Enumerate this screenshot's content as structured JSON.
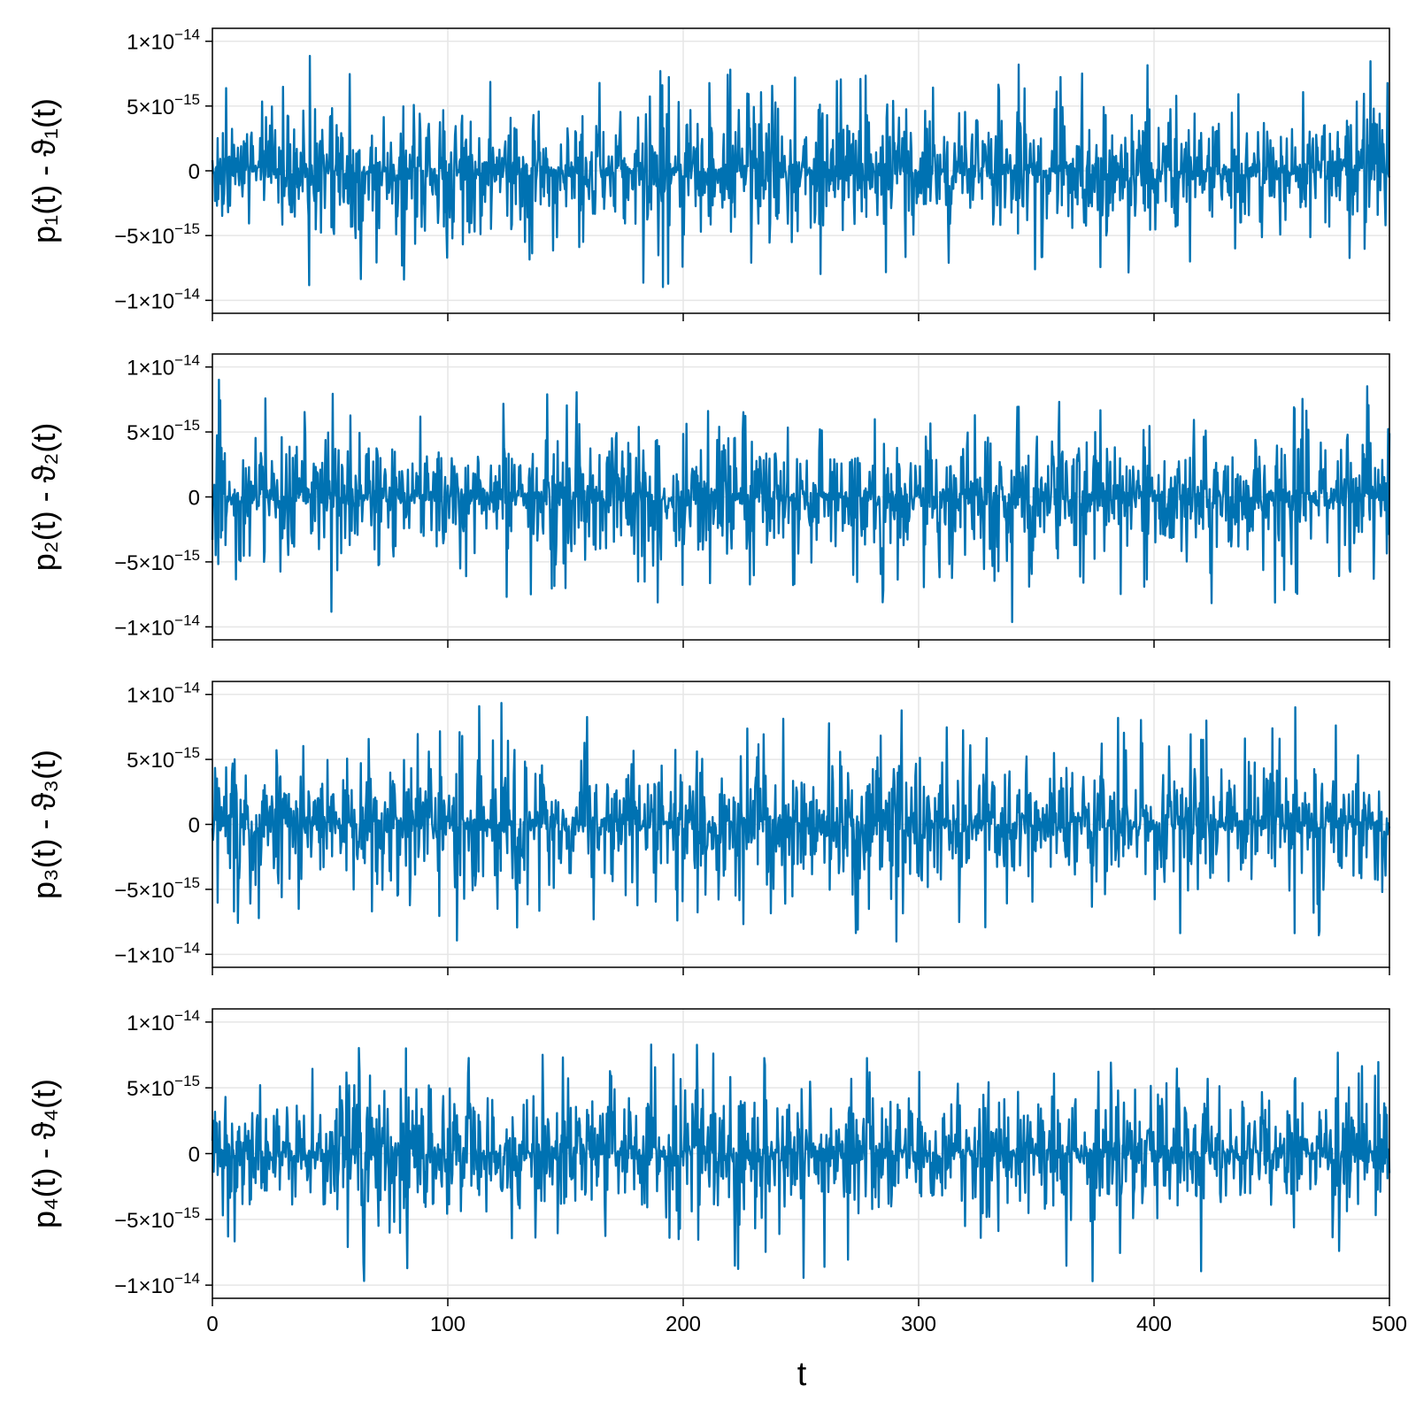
{
  "chart_data": [
    {
      "type": "line",
      "ylabel": "p₁(t) - ϑ₁(t)",
      "xlim": [
        0,
        500
      ],
      "ylim": [
        -1.1e-14,
        1.1e-14
      ],
      "y_ticks": [
        {
          "value": 1e-14,
          "mantissa": "1×10",
          "exp": "−14"
        },
        {
          "value": 5e-15,
          "mantissa": "5×10",
          "exp": "−15"
        },
        {
          "value": 0,
          "mantissa": "0",
          "exp": ""
        },
        {
          "value": -5e-15,
          "mantissa": "−5×10",
          "exp": "−15"
        },
        {
          "value": -1e-14,
          "mantissa": "−1×10",
          "exp": "−14"
        }
      ],
      "grid": true,
      "series": [
        {
          "color": "#0072b2",
          "x_range": [
            0,
            500
          ],
          "y_max_abs": 1e-14,
          "description": "dense high-frequency oscillation around zero with quasi-periodic bursts"
        }
      ]
    },
    {
      "type": "line",
      "ylabel": "p₂(t) - ϑ₂(t)",
      "xlim": [
        0,
        500
      ],
      "ylim": [
        -1.1e-14,
        1.1e-14
      ],
      "y_ticks": [
        {
          "value": 1e-14,
          "mantissa": "1×10",
          "exp": "−14"
        },
        {
          "value": 5e-15,
          "mantissa": "5×10",
          "exp": "−15"
        },
        {
          "value": 0,
          "mantissa": "0",
          "exp": ""
        },
        {
          "value": -5e-15,
          "mantissa": "−5×10",
          "exp": "−15"
        },
        {
          "value": -1e-14,
          "mantissa": "−1×10",
          "exp": "−14"
        }
      ],
      "grid": true,
      "series": [
        {
          "color": "#0072b2",
          "x_range": [
            0,
            500
          ],
          "y_max_abs": 1e-14
        }
      ]
    },
    {
      "type": "line",
      "ylabel": "p₃(t) - ϑ₃(t)",
      "xlim": [
        0,
        500
      ],
      "ylim": [
        -1.1e-14,
        1.1e-14
      ],
      "y_ticks": [
        {
          "value": 1e-14,
          "mantissa": "1×10",
          "exp": "−14"
        },
        {
          "value": 5e-15,
          "mantissa": "5×10",
          "exp": "−15"
        },
        {
          "value": 0,
          "mantissa": "0",
          "exp": ""
        },
        {
          "value": -5e-15,
          "mantissa": "−5×10",
          "exp": "−15"
        },
        {
          "value": -1e-14,
          "mantissa": "−1×10",
          "exp": "−14"
        }
      ],
      "grid": true,
      "series": [
        {
          "color": "#0072b2",
          "x_range": [
            0,
            500
          ],
          "y_max_abs": 1e-14
        }
      ]
    },
    {
      "type": "line",
      "ylabel": "p₄(t) - ϑ₄(t)",
      "xlim": [
        0,
        500
      ],
      "ylim": [
        -1.1e-14,
        1.1e-14
      ],
      "y_ticks": [
        {
          "value": 1e-14,
          "mantissa": "1×10",
          "exp": "−14"
        },
        {
          "value": 5e-15,
          "mantissa": "5×10",
          "exp": "−15"
        },
        {
          "value": 0,
          "mantissa": "0",
          "exp": ""
        },
        {
          "value": -5e-15,
          "mantissa": "−5×10",
          "exp": "−15"
        },
        {
          "value": -1e-14,
          "mantissa": "−1×10",
          "exp": "−14"
        }
      ],
      "x_ticks": [
        "0",
        "100",
        "200",
        "300",
        "400",
        "500"
      ],
      "xlabel": "t",
      "grid": true,
      "series": [
        {
          "color": "#0072b2",
          "x_range": [
            0,
            500
          ],
          "y_max_abs": 1e-14
        }
      ]
    }
  ]
}
